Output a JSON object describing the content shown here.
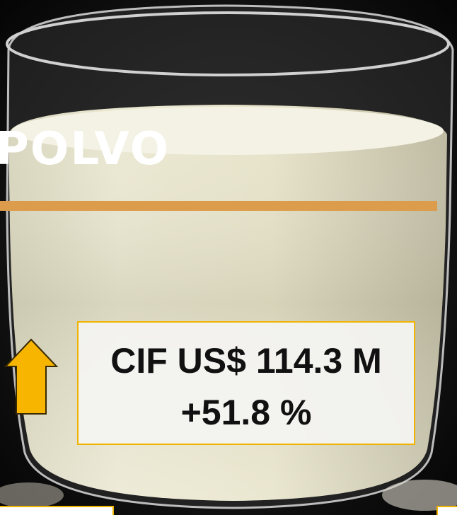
{
  "title": "POLVO",
  "stat": {
    "value": "CIF US$ 114.3 M",
    "change": "+51.8 %"
  }
}
